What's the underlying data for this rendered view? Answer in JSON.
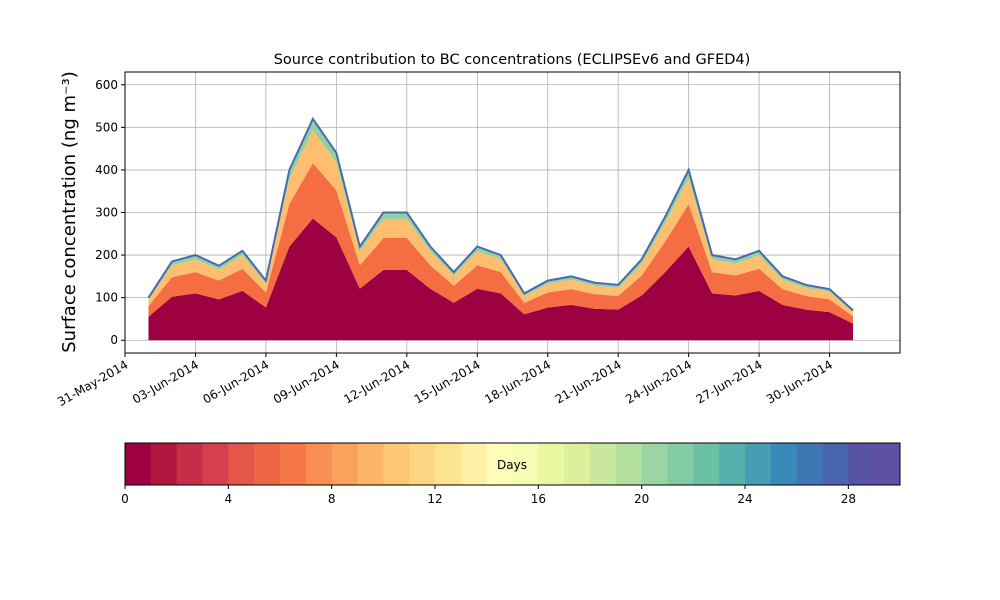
{
  "chart_data": {
    "type": "stacked_area",
    "title": "Source contribution to BC concentrations (ECLIPSEv6 and GFED4)",
    "ylabel": "Surface concentration (ng m⁻³)",
    "x": [
      "01-Jun-2014",
      "02-Jun-2014",
      "03-Jun-2014",
      "04-Jun-2014",
      "05-Jun-2014",
      "06-Jun-2014",
      "07-Jun-2014",
      "08-Jun-2014",
      "09-Jun-2014",
      "10-Jun-2014",
      "11-Jun-2014",
      "12-Jun-2014",
      "13-Jun-2014",
      "14-Jun-2014",
      "15-Jun-2014",
      "16-Jun-2014",
      "17-Jun-2014",
      "18-Jun-2014",
      "19-Jun-2014",
      "20-Jun-2014",
      "21-Jun-2014",
      "22-Jun-2014",
      "23-Jun-2014",
      "24-Jun-2014",
      "25-Jun-2014",
      "26-Jun-2014",
      "27-Jun-2014",
      "28-Jun-2014",
      "29-Jun-2014",
      "30-Jun-2014",
      "01-Jul-2014"
    ],
    "series": [
      {
        "color": "#9e0142",
        "values": [
          55,
          102,
          110,
          96,
          116,
          77,
          220,
          286,
          242,
          121,
          165,
          165,
          121,
          88,
          121,
          110,
          61,
          77,
          83,
          74,
          72,
          105,
          160,
          220,
          110,
          105,
          116,
          83,
          72,
          66,
          39
        ]
      },
      {
        "color": "#f46d43",
        "values": [
          25,
          46,
          50,
          44,
          52,
          35,
          100,
          130,
          110,
          55,
          75,
          75,
          55,
          40,
          55,
          50,
          27,
          35,
          37,
          34,
          32,
          47,
          72,
          100,
          50,
          47,
          52,
          37,
          32,
          30,
          17
        ]
      },
      {
        "color": "#fdbf6f",
        "values": [
          15,
          28,
          30,
          26,
          32,
          21,
          60,
          78,
          66,
          33,
          45,
          45,
          33,
          24,
          33,
          30,
          16,
          21,
          22,
          20,
          19,
          28,
          43,
          60,
          30,
          28,
          32,
          22,
          19,
          18,
          10
        ]
      },
      {
        "color": "#8fd1a4",
        "values": [
          5,
          9,
          10,
          9,
          10,
          7,
          20,
          26,
          22,
          11,
          15,
          15,
          11,
          8,
          11,
          10,
          6,
          7,
          8,
          7,
          7,
          10,
          15,
          20,
          10,
          10,
          10,
          8,
          7,
          6,
          4
        ]
      }
    ],
    "line_color": "#4a6aac",
    "xlim": [
      "31-May-2014",
      "03-Jul-2014"
    ],
    "xticks": [
      "31-May-2014",
      "03-Jun-2014",
      "06-Jun-2014",
      "09-Jun-2014",
      "12-Jun-2014",
      "15-Jun-2014",
      "18-Jun-2014",
      "21-Jun-2014",
      "24-Jun-2014",
      "27-Jun-2014",
      "30-Jun-2014"
    ],
    "ylim": [
      -30,
      630
    ],
    "yticks": [
      0,
      100,
      200,
      300,
      400,
      500,
      600
    ],
    "grid": true,
    "colorbar": {
      "label": "Days",
      "lim": [
        0,
        30
      ],
      "ticks": [
        0,
        4,
        8,
        12,
        16,
        20,
        24,
        28
      ],
      "colors": [
        "#9e0142",
        "#b2183f",
        "#c62d49",
        "#d6404e",
        "#e4554a",
        "#ee6544",
        "#f57748",
        "#f98e52",
        "#fca15d",
        "#fdb567",
        "#fec673",
        "#fed683",
        "#fee491",
        "#fff0a6",
        "#fffbb8",
        "#f7fcb4",
        "#ecf7a1",
        "#dcf09b",
        "#c9e89e",
        "#b3df9f",
        "#9ad5a3",
        "#82cba5",
        "#6bc1a5",
        "#57b0ab",
        "#479db4",
        "#3a8ab9",
        "#3f77b4",
        "#4965ad",
        "#5752a4",
        "#5e4fa2"
      ]
    }
  }
}
